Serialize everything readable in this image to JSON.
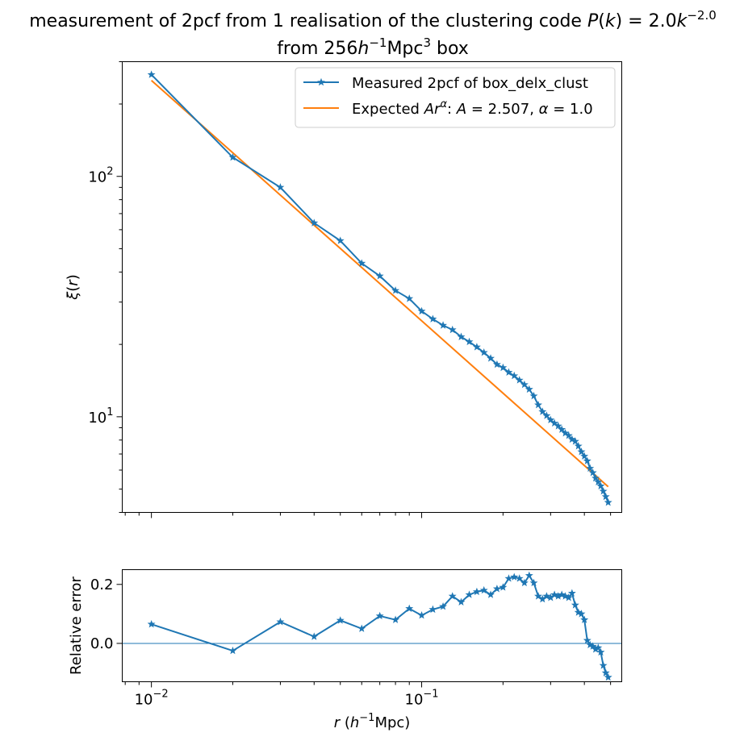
{
  "chart_data": [
    {
      "type": "line",
      "title": {
        "line1_prefix": "measurement of 2pcf from 1 realisation of the clustering code ",
        "line1_math_P": "P",
        "line1_math_open": "(",
        "line1_math_k": "k",
        "line1_math_close": ") = 2.0",
        "line1_math_k2": "k",
        "line1_math_exp": "−2.0",
        "line2_prefix": "from 256",
        "line2_h": "h",
        "line2_hexp": "−1",
        "line2_unit": "Mpc",
        "line2_unitexp": "3",
        "line2_suffix": " box"
      },
      "xlabel": "",
      "ylabel": {
        "xi": "ξ",
        "paren": "(",
        "r": "r",
        "close": ")"
      },
      "xscale": "log",
      "yscale": "log",
      "xlim": [
        0.0078,
        0.55
      ],
      "ylim": [
        4.0,
        300
      ],
      "x_ticks": [
        {
          "value": 0.01,
          "label": "10"
        },
        {
          "value": 0.1,
          "label": "10"
        }
      ],
      "y_ticks": [
        {
          "value": 10,
          "base": "10",
          "exp": "1"
        },
        {
          "value": 100,
          "base": "10",
          "exp": "2"
        }
      ],
      "legend_position": "top-right",
      "series": [
        {
          "name": "Measured 2pcf of box_delx_clust",
          "color": "#1f77b4",
          "marker": "star",
          "x": [
            0.01,
            0.02,
            0.03,
            0.04,
            0.05,
            0.06,
            0.07,
            0.08,
            0.09,
            0.1,
            0.11,
            0.12,
            0.13,
            0.14,
            0.15,
            0.16,
            0.17,
            0.18,
            0.19,
            0.2,
            0.21,
            0.22,
            0.23,
            0.24,
            0.25,
            0.26,
            0.27,
            0.28,
            0.29,
            0.3,
            0.31,
            0.32,
            0.33,
            0.34,
            0.35,
            0.36,
            0.37,
            0.38,
            0.39,
            0.4,
            0.41,
            0.42,
            0.43,
            0.44,
            0.45,
            0.46,
            0.47,
            0.48,
            0.49
          ],
          "y": [
            265,
            120,
            90,
            64,
            54,
            43.5,
            38.5,
            33.5,
            31,
            27.5,
            25.5,
            24,
            23,
            21.5,
            20.5,
            19.5,
            18.5,
            17.5,
            16.5,
            16,
            15.3,
            14.8,
            14.2,
            13.6,
            13.0,
            12.2,
            11.2,
            10.5,
            10.1,
            9.7,
            9.4,
            9.15,
            8.85,
            8.55,
            8.35,
            8.05,
            7.9,
            7.55,
            7.15,
            6.85,
            6.55,
            6.1,
            5.85,
            5.55,
            5.35,
            5.15,
            4.9,
            4.65,
            4.4
          ]
        },
        {
          "name_prefix": "Expected ",
          "name_A": "A",
          "name_r": "r",
          "name_alpha_sup": "α",
          "name_mid": ": ",
          "name_A2": "A",
          "name_eq1": " = 2.507, ",
          "name_alpha": "α",
          "name_eq2": " = 1.0",
          "color": "#ff7f0e",
          "marker": "none",
          "A": 2.507,
          "alpha": 1.0,
          "x": [
            0.01,
            0.49
          ],
          "y": [
            250.7,
            5.116
          ]
        }
      ]
    },
    {
      "type": "line",
      "title": "",
      "xlabel": {
        "r": "r",
        "open": " (",
        "h": "h",
        "hexp": "−1",
        "unit": "Mpc)"
      },
      "ylabel": "Relative error",
      "xscale": "log",
      "yscale": "linear",
      "xlim": [
        0.0078,
        0.55
      ],
      "ylim": [
        -0.13,
        0.25
      ],
      "x_ticks": [
        {
          "value": 0.01,
          "base": "10",
          "exp": "−2"
        },
        {
          "value": 0.1,
          "base": "10",
          "exp": "−1"
        }
      ],
      "y_ticks": [
        {
          "value": 0.2,
          "label": "0.2"
        },
        {
          "value": 0.0,
          "label": "0.0"
        }
      ],
      "reference_line": 0.0,
      "series": [
        {
          "name": "",
          "color": "#1f77b4",
          "marker": "star",
          "x": [
            0.01,
            0.02,
            0.03,
            0.04,
            0.05,
            0.06,
            0.07,
            0.08,
            0.09,
            0.1,
            0.11,
            0.12,
            0.13,
            0.14,
            0.15,
            0.16,
            0.17,
            0.18,
            0.19,
            0.2,
            0.21,
            0.22,
            0.23,
            0.24,
            0.25,
            0.26,
            0.27,
            0.28,
            0.29,
            0.3,
            0.31,
            0.32,
            0.33,
            0.34,
            0.35,
            0.36,
            0.37,
            0.38,
            0.39,
            0.4,
            0.41,
            0.42,
            0.43,
            0.44,
            0.45,
            0.46,
            0.47,
            0.48,
            0.49
          ],
          "y": [
            0.065,
            -0.025,
            0.073,
            0.023,
            0.078,
            0.05,
            0.093,
            0.08,
            0.118,
            0.095,
            0.115,
            0.125,
            0.16,
            0.14,
            0.165,
            0.175,
            0.18,
            0.165,
            0.185,
            0.19,
            0.22,
            0.225,
            0.22,
            0.205,
            0.23,
            0.205,
            0.16,
            0.15,
            0.16,
            0.155,
            0.165,
            0.16,
            0.165,
            0.16,
            0.155,
            0.17,
            0.13,
            0.105,
            0.1,
            0.08,
            0.01,
            -0.005,
            -0.01,
            -0.02,
            -0.015,
            -0.03,
            -0.075,
            -0.1,
            -0.115
          ]
        }
      ]
    }
  ]
}
